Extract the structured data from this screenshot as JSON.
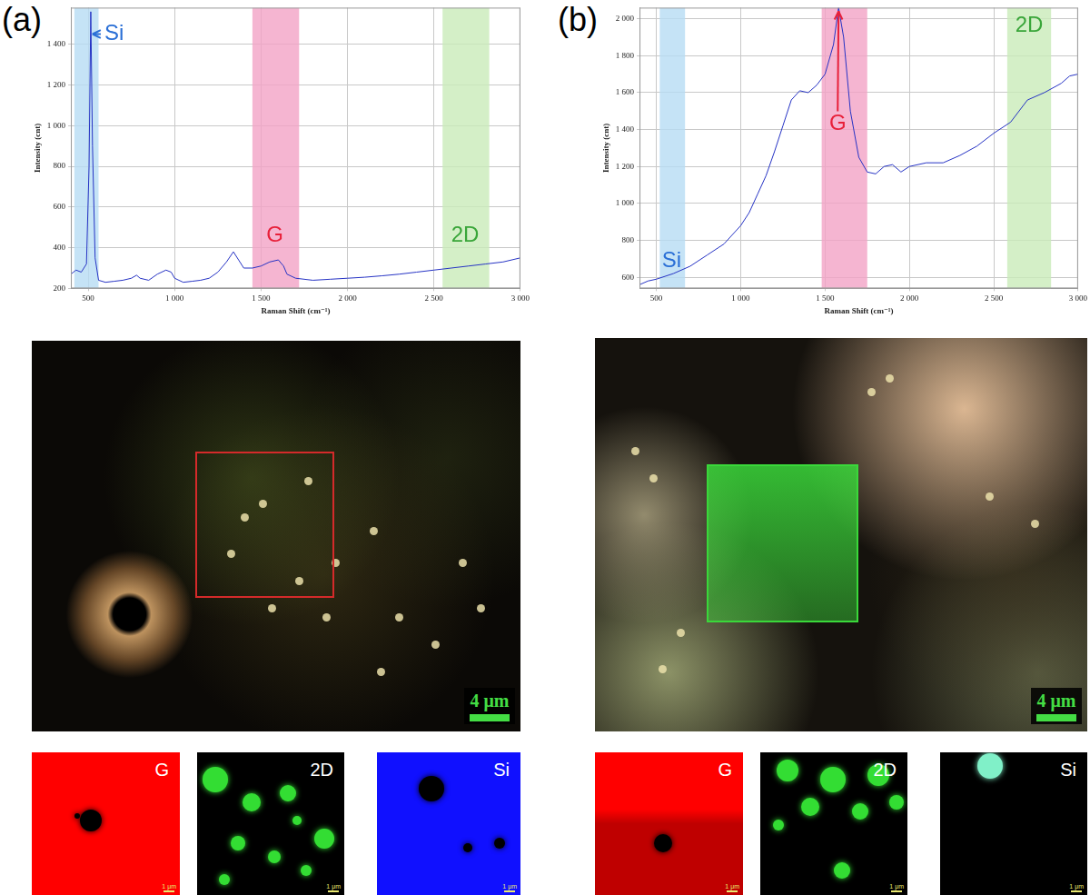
{
  "chart_data": [
    {
      "type": "line",
      "panel_label": "(a)",
      "x_label": "Raman Shift (cm⁻¹)",
      "y_label": "Intensity (cnt)",
      "color": "#2633c4",
      "grid": true,
      "legend": false,
      "xlim": [
        400,
        3000
      ],
      "xticks": [
        500,
        {
          "value": 1000,
          "label": "1 000"
        },
        {
          "value": 1500,
          "label": "1 500"
        },
        {
          "value": 2000,
          "label": "2 000"
        },
        {
          "value": 2500,
          "label": "2 500"
        },
        {
          "value": 3000,
          "label": "3 000"
        }
      ],
      "ylim": [
        200,
        1580
      ],
      "yticks": [
        200,
        400,
        600,
        800,
        {
          "value": 1000,
          "label": "1 000"
        },
        {
          "value": 1200,
          "label": "1 200"
        },
        {
          "value": 1400,
          "label": "1 400"
        }
      ],
      "x": [
        400,
        430,
        460,
        490,
        505,
        515,
        525,
        540,
        560,
        600,
        650,
        700,
        750,
        780,
        800,
        850,
        900,
        950,
        980,
        1000,
        1050,
        1100,
        1150,
        1200,
        1250,
        1300,
        1340,
        1370,
        1400,
        1450,
        1500,
        1550,
        1600,
        1630,
        1650,
        1700,
        1800,
        1900,
        2000,
        2100,
        2200,
        2300,
        2400,
        2500,
        2600,
        2700,
        2800,
        2900,
        3000
      ],
      "values": [
        270,
        290,
        280,
        320,
        800,
        1560,
        900,
        350,
        240,
        230,
        235,
        240,
        250,
        265,
        250,
        240,
        270,
        290,
        280,
        250,
        230,
        235,
        240,
        250,
        280,
        330,
        380,
        340,
        300,
        300,
        310,
        330,
        340,
        310,
        270,
        250,
        240,
        245,
        250,
        255,
        262,
        270,
        280,
        290,
        300,
        310,
        320,
        330,
        350
      ],
      "bands": [
        {
          "label": "Si",
          "from": 420,
          "to": 560,
          "color": "#b7dcf4"
        },
        {
          "label": "G",
          "from": 1450,
          "to": 1720,
          "color": "#f3a3c6"
        },
        {
          "label": "2D",
          "from": 2550,
          "to": 2820,
          "color": "#c9ebb9"
        }
      ],
      "annotations": [
        {
          "text": "Si",
          "x": 650,
          "y": 1450,
          "color": "#2a6fd6",
          "arrow_to": [
            525,
            1450
          ]
        },
        {
          "text": "G",
          "x": 1580,
          "y": 460,
          "color": "#e8203a"
        },
        {
          "text": "2D",
          "x": 2680,
          "y": 460,
          "color": "#3aa63a"
        }
      ]
    },
    {
      "type": "line",
      "panel_label": "(b)",
      "x_label": "Raman Shift (cm⁻¹)",
      "y_label": "Intensity (cnt)",
      "color": "#2633c4",
      "grid": true,
      "legend": false,
      "xlim": [
        400,
        3000
      ],
      "xticks": [
        500,
        {
          "value": 1000,
          "label": "1 000"
        },
        {
          "value": 1500,
          "label": "1 500"
        },
        {
          "value": 2000,
          "label": "2 000"
        },
        {
          "value": 2500,
          "label": "2 500"
        },
        {
          "value": 3000,
          "label": "3 000"
        }
      ],
      "ylim": [
        540,
        2060
      ],
      "yticks": [
        600,
        800,
        {
          "value": 1000,
          "label": "1 000"
        },
        {
          "value": 1200,
          "label": "1 200"
        },
        {
          "value": 1400,
          "label": "1 400"
        },
        {
          "value": 1600,
          "label": "1 600"
        },
        {
          "value": 1800,
          "label": "1 800"
        },
        {
          "value": 2000,
          "label": "2 000"
        }
      ],
      "x": [
        400,
        450,
        500,
        600,
        700,
        800,
        900,
        1000,
        1050,
        1100,
        1150,
        1200,
        1250,
        1300,
        1350,
        1400,
        1450,
        1500,
        1550,
        1580,
        1610,
        1650,
        1700,
        1750,
        1800,
        1850,
        1900,
        1950,
        2000,
        2100,
        2200,
        2300,
        2400,
        2500,
        2600,
        2700,
        2800,
        2900,
        2950,
        3000
      ],
      "values": [
        560,
        580,
        590,
        620,
        660,
        720,
        780,
        880,
        950,
        1050,
        1150,
        1280,
        1420,
        1560,
        1610,
        1600,
        1640,
        1700,
        1860,
        2060,
        1900,
        1500,
        1250,
        1170,
        1160,
        1200,
        1210,
        1170,
        1200,
        1220,
        1220,
        1260,
        1310,
        1380,
        1440,
        1560,
        1600,
        1650,
        1690,
        1700
      ],
      "bands": [
        {
          "label": "Si",
          "from": 520,
          "to": 670,
          "color": "#b7dcf4"
        },
        {
          "label": "G",
          "from": 1480,
          "to": 1750,
          "color": "#f3a3c6"
        },
        {
          "label": "2D",
          "from": 2580,
          "to": 2840,
          "color": "#c9ebb9"
        }
      ],
      "annotations": [
        {
          "text": "Si",
          "x": 590,
          "y": 690,
          "color": "#2a6fd6"
        },
        {
          "text": "G",
          "x": 1575,
          "y": 1430,
          "color": "#e8203a",
          "arrow_to": [
            1580,
            2040
          ]
        },
        {
          "text": "2D",
          "x": 2710,
          "y": 1960,
          "color": "#3aa63a"
        }
      ]
    }
  ],
  "micrographs": [
    {
      "scale_bar": "4 μm",
      "box_color": "#d42a2a",
      "scale_color": "#44dd44"
    },
    {
      "scale_bar": "4 μm",
      "box_color": "#3ad83a",
      "scale_color": "#44dd44"
    }
  ],
  "maps": [
    [
      {
        "label": "G",
        "color": "#ff0000",
        "scale_bar": "1 μm"
      },
      {
        "label": "2D",
        "color": "#33dd33",
        "scale_bar": "1 μm"
      },
      {
        "label": "Si",
        "color": "#1010ff",
        "scale_bar": "1 μm"
      }
    ],
    [
      {
        "label": "G",
        "color": "#ff0000",
        "scale_bar": "1 μm"
      },
      {
        "label": "2D",
        "color": "#33dd33",
        "scale_bar": "1 μm"
      },
      {
        "label": "Si",
        "color": "#80f0c8",
        "scale_bar": "1 μm"
      }
    ]
  ]
}
